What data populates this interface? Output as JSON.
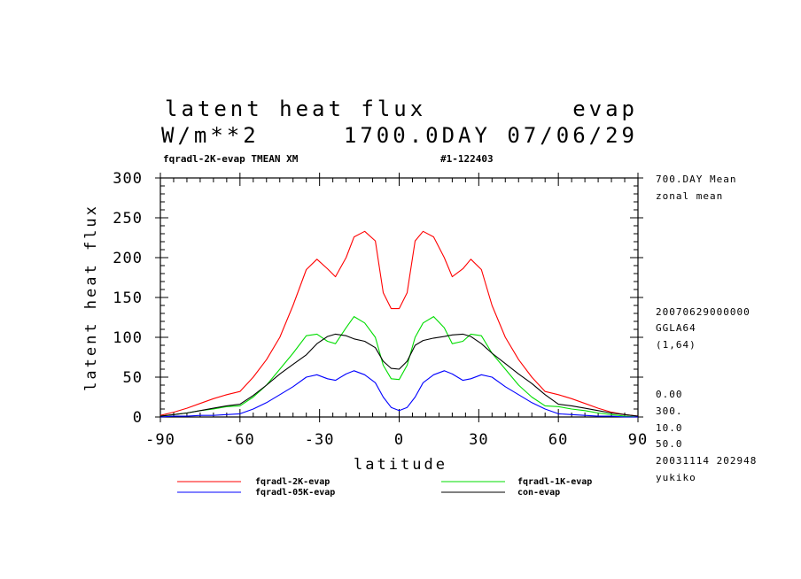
{
  "header": {
    "title_left": "latent heat flux",
    "title_right": "evap",
    "units": "W/m**2",
    "time_label": "1700.0DAY 07/06/29",
    "subtitle_left": "fqradl-2K-evap TMEAN XM",
    "subtitle_right": "#1-122403"
  },
  "side_info": {
    "top": [
      "700.DAY Mean",
      "zonal mean"
    ],
    "middle": [
      "20070629000000",
      "GGLA64",
      "(1,64)"
    ],
    "bottom": [
      "0.00",
      "300.",
      "10.0",
      "50.0",
      "20031114 202948",
      "yukiko"
    ]
  },
  "chart_data": {
    "type": "line",
    "xlabel": "latitude",
    "ylabel": "latent heat flux",
    "xlim": [
      -90,
      90
    ],
    "ylim": [
      0,
      300
    ],
    "xticks": [
      -90,
      -60,
      -30,
      0,
      30,
      60,
      90
    ],
    "yticks": [
      0,
      50,
      100,
      150,
      200,
      250,
      300
    ],
    "x": [
      -90,
      -85,
      -80,
      -75,
      -70,
      -65,
      -60,
      -55,
      -50,
      -45,
      -40,
      -35,
      -31,
      -27,
      -24,
      -20,
      -17,
      -13,
      -9,
      -6,
      -3,
      0,
      3,
      6,
      9,
      13,
      17,
      20,
      24,
      27,
      31,
      35,
      40,
      45,
      50,
      55,
      60,
      65,
      70,
      75,
      80,
      85,
      90
    ],
    "series": [
      {
        "name": "fqradl-2K-evap",
        "color": "#ff0000",
        "values": [
          2,
          6,
          11,
          17,
          23,
          28,
          32,
          50,
          72,
          100,
          140,
          185,
          198,
          186,
          176,
          200,
          226,
          233,
          221,
          156,
          136,
          136,
          156,
          221,
          233,
          226,
          200,
          176,
          186,
          198,
          185,
          140,
          100,
          72,
          50,
          32,
          28,
          23,
          17,
          11,
          6,
          3,
          1
        ]
      },
      {
        "name": "fqradl-1K-evap",
        "color": "#00dd00",
        "values": [
          1,
          3,
          5,
          8,
          10,
          13,
          14,
          25,
          40,
          60,
          80,
          102,
          104,
          95,
          92,
          112,
          126,
          118,
          100,
          65,
          48,
          47,
          65,
          100,
          118,
          126,
          112,
          92,
          95,
          104,
          102,
          80,
          60,
          40,
          25,
          14,
          13,
          10,
          8,
          5,
          3,
          1,
          0
        ]
      },
      {
        "name": "fqradl-05K-evap",
        "color": "#0000ff",
        "values": [
          0,
          1,
          1,
          2,
          2,
          3,
          4,
          10,
          18,
          28,
          38,
          50,
          53,
          48,
          46,
          54,
          58,
          53,
          43,
          25,
          12,
          8,
          12,
          25,
          43,
          53,
          58,
          54,
          46,
          48,
          53,
          50,
          38,
          28,
          18,
          10,
          4,
          3,
          2,
          1,
          1,
          0,
          0
        ]
      },
      {
        "name": "con-evap",
        "color": "#000000",
        "values": [
          1,
          3,
          5,
          8,
          11,
          14,
          16,
          27,
          40,
          54,
          66,
          78,
          92,
          101,
          104,
          102,
          98,
          95,
          87,
          70,
          61,
          60,
          70,
          90,
          96,
          99,
          101,
          103,
          104,
          101,
          92,
          80,
          67,
          54,
          42,
          28,
          16,
          14,
          11,
          8,
          5,
          3,
          1
        ]
      }
    ]
  }
}
